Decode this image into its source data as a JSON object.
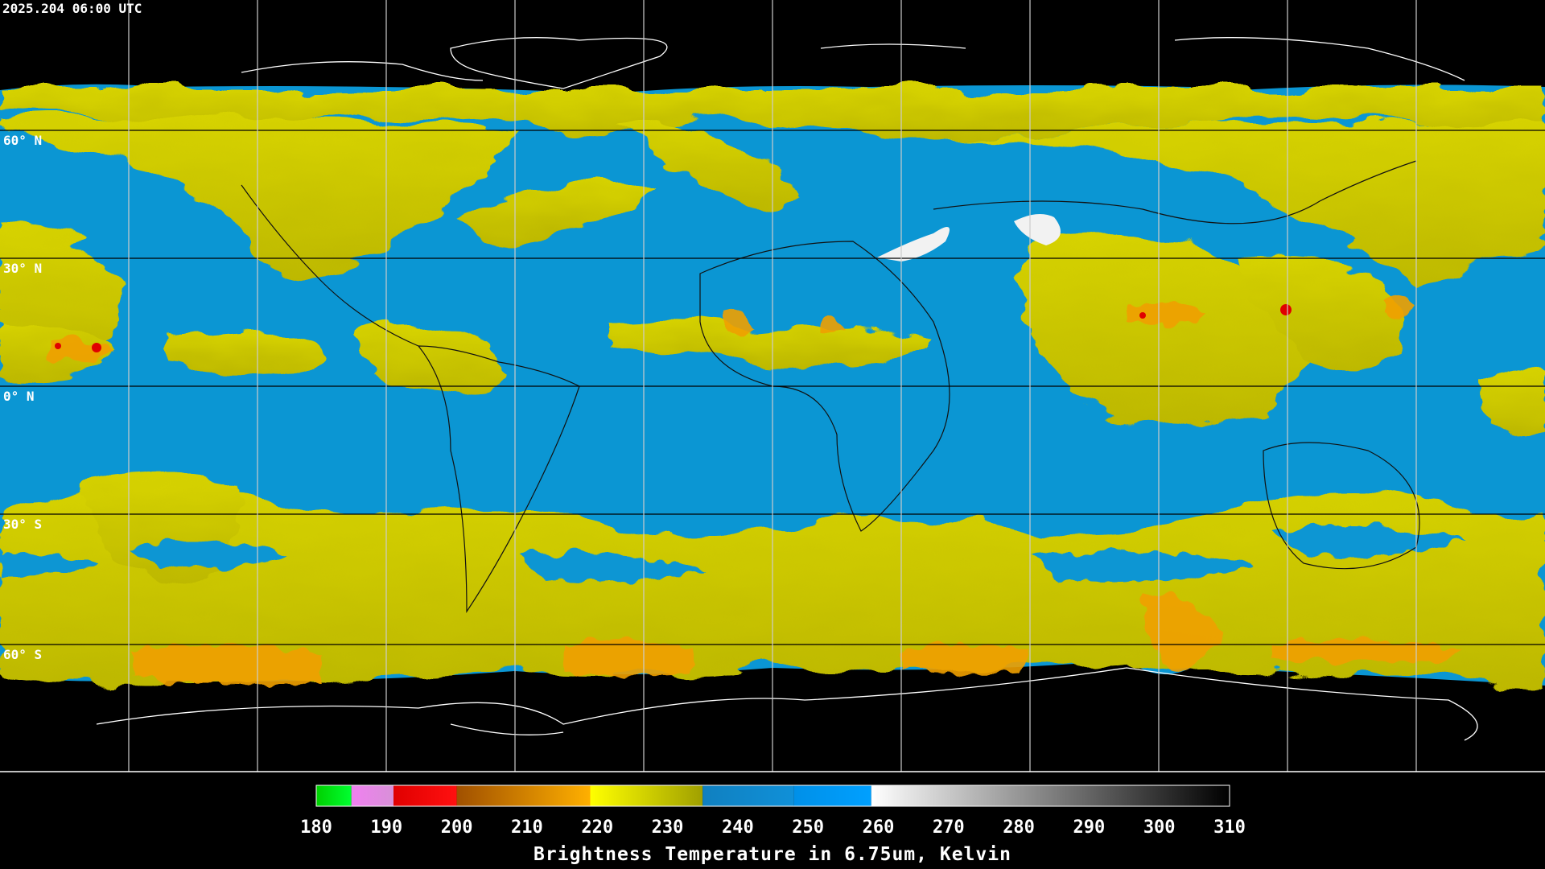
{
  "header": {
    "timestamp": "2025.204 06:00 UTC"
  },
  "map": {
    "lat_labels": [
      "60° N",
      "30° N",
      "0° N",
      "30° S",
      "60° S"
    ]
  },
  "colorbar": {
    "min": 180,
    "max": 310,
    "ticks": [
      180,
      190,
      200,
      210,
      220,
      230,
      240,
      250,
      260,
      270,
      280,
      290,
      300,
      310
    ],
    "label": "Brightness Temperature in 6.75um, Kelvin",
    "segments": [
      {
        "from": 180,
        "to": 185,
        "colors": [
          "#00d000",
          "#00ff30"
        ]
      },
      {
        "from": 185,
        "to": 191,
        "colors": [
          "#f080f0",
          "#d890d8"
        ]
      },
      {
        "from": 191,
        "to": 200,
        "colors": [
          "#e00000",
          "#ff1010"
        ]
      },
      {
        "from": 200,
        "to": 219,
        "colors": [
          "#a05000",
          "#ffb000"
        ]
      },
      {
        "from": 219,
        "to": 235,
        "colors": [
          "#ffff00",
          "#a0a000"
        ]
      },
      {
        "from": 235,
        "to": 248,
        "colors": [
          "#1080c0",
          "#1090d8"
        ]
      },
      {
        "from": 248,
        "to": 259,
        "colors": [
          "#0090e8",
          "#00a0ff"
        ]
      },
      {
        "from": 259,
        "to": 310,
        "colors": [
          "#ffffff",
          "#000000"
        ]
      }
    ]
  }
}
